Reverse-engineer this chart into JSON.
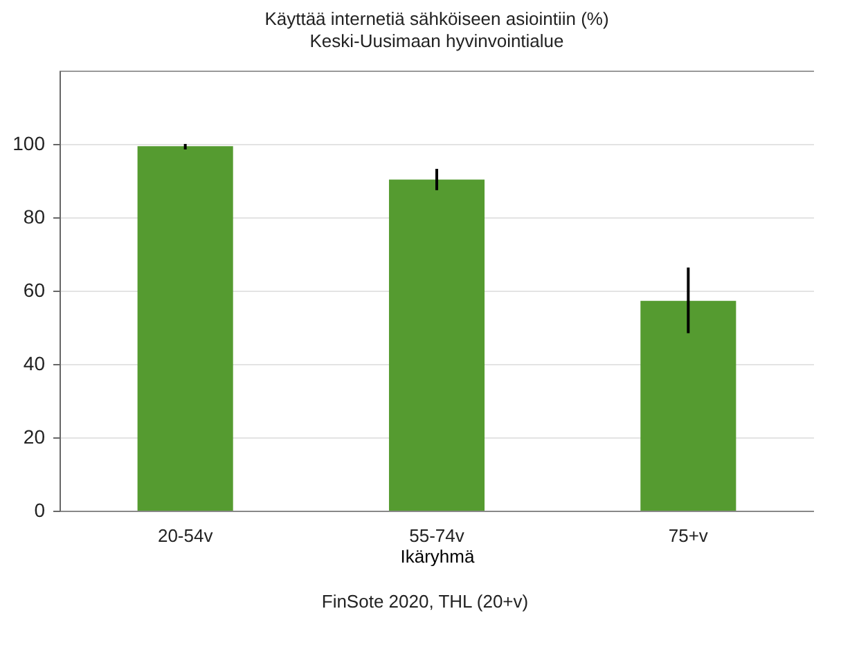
{
  "chart_data": {
    "type": "bar",
    "title": "Käyttää internetiä sähköiseen asiointiin (%)",
    "subtitle": "Keski-Uusimaan hyvinvointialue",
    "categories": [
      "20-54v",
      "55-74v",
      "75+v"
    ],
    "values": [
      99.4,
      90.3,
      57.2
    ],
    "errors": [
      [
        98.5,
        100
      ],
      [
        87.4,
        93.2
      ],
      [
        48.4,
        66.3
      ]
    ],
    "color": "#559b30",
    "xlabel": "Ikäryhmä",
    "ylim": [
      0,
      120
    ],
    "yticks": [
      0,
      20,
      40,
      60,
      80,
      100
    ],
    "grid": "y",
    "annotations": [
      "FinSote 2020, THL (20+v)"
    ]
  }
}
